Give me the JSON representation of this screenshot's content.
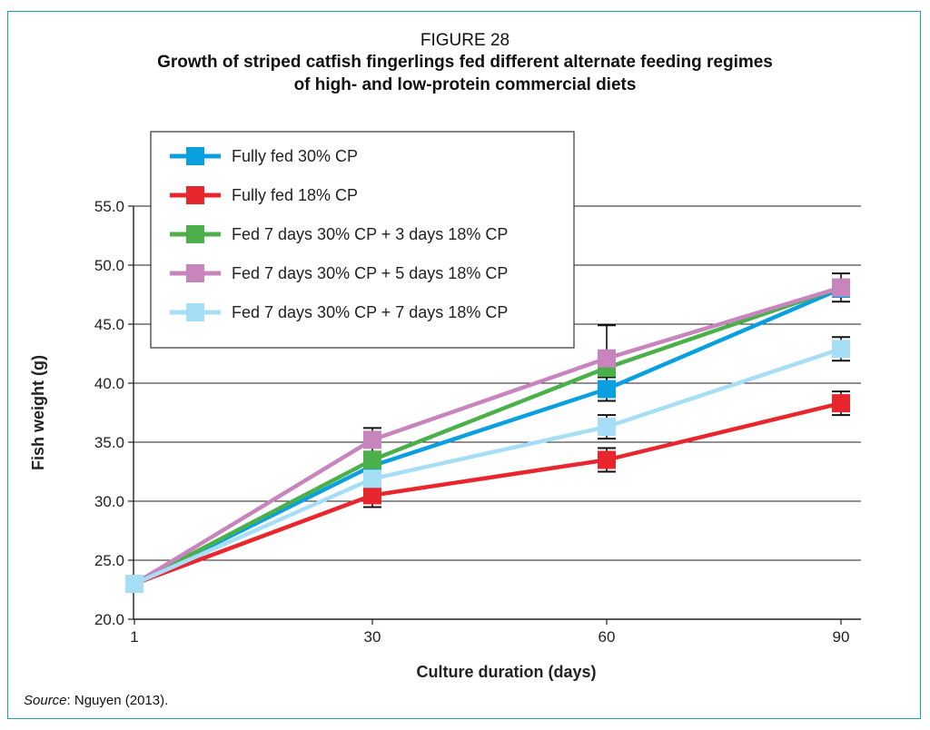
{
  "figure": {
    "number": "FIGURE 28",
    "title_line1": "Growth of striped catfish fingerlings fed different alternate feeding regimes",
    "title_line2": "of high- and low-protein commercial diets"
  },
  "source": {
    "label": "Source",
    "text": ": Nguyen (2013)."
  },
  "chart_data": {
    "type": "line",
    "title": "Growth of striped catfish fingerlings fed different alternate feeding regimes of high- and low-protein commercial diets",
    "xlabel": "Culture duration (days)",
    "ylabel": "Fish weight (g)",
    "x": [
      1,
      30,
      60,
      90
    ],
    "x_tick_labels": [
      "1",
      "30",
      "60",
      "90"
    ],
    "ylim": [
      20,
      55
    ],
    "y_ticks": [
      20,
      25,
      30,
      35,
      40,
      45,
      50,
      55
    ],
    "y_tick_labels": [
      "20.0",
      "25.0",
      "30.0",
      "35.0",
      "40.0",
      "45.0",
      "50.0",
      "55.0"
    ],
    "grid": "horizontal",
    "legend_position": "top-left",
    "series": [
      {
        "name": "Fully fed 30% CP",
        "color": "#0aa0e0",
        "values": [
          23.0,
          33.0,
          39.5,
          48.0
        ],
        "err": [
          0,
          0,
          1.0,
          0
        ]
      },
      {
        "name": "Fully fed 18% CP",
        "color": "#e8262e",
        "values": [
          23.0,
          30.5,
          33.5,
          38.3
        ],
        "err": [
          0,
          1.0,
          1.0,
          1.0
        ]
      },
      {
        "name": "Fed 7 days 30% CP + 3 days 18% CP",
        "color": "#4bb04a",
        "values": [
          23.0,
          33.5,
          41.3,
          48.1
        ],
        "err": [
          0,
          0,
          0,
          0
        ]
      },
      {
        "name": "Fed 7 days 30% CP + 5 days 18% CP",
        "color": "#c784bd",
        "values": [
          23.0,
          35.2,
          42.1,
          48.1
        ],
        "err": [
          0,
          1.0,
          2.8,
          1.2
        ]
      },
      {
        "name": "Fed 7 days 30% CP + 7 days 18% CP",
        "color": "#a6def5",
        "values": [
          23.0,
          31.9,
          36.3,
          42.9
        ],
        "err": [
          0,
          0,
          1.0,
          1.0
        ]
      }
    ]
  }
}
